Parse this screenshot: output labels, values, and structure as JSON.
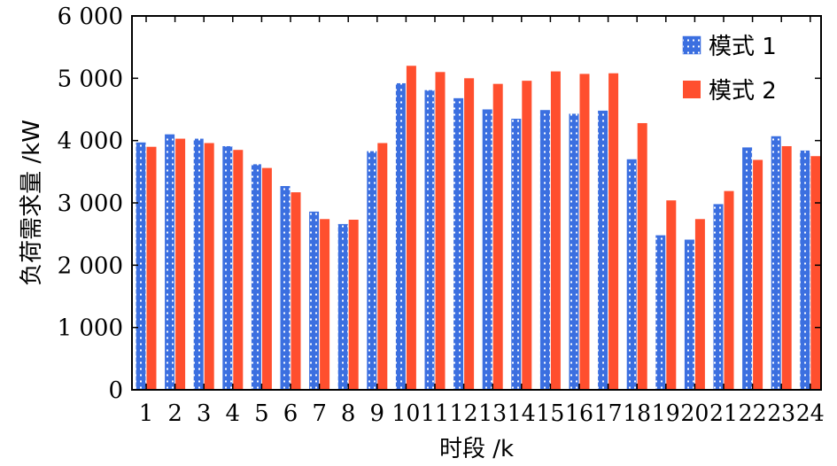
{
  "chart_data": {
    "type": "bar",
    "title": "",
    "xlabel": "时段 /k",
    "ylabel": "负荷需求量 /kW",
    "ylim": [
      0,
      6000
    ],
    "yticks": [
      0,
      1000,
      2000,
      3000,
      4000,
      5000,
      6000
    ],
    "ytick_labels": [
      "0",
      "1 000",
      "2 000",
      "3 000",
      "4 000",
      "5 000",
      "6 000"
    ],
    "categories": [
      "1",
      "2",
      "3",
      "4",
      "5",
      "6",
      "7",
      "8",
      "9",
      "10",
      "11",
      "12",
      "13",
      "14",
      "15",
      "16",
      "17",
      "18",
      "19",
      "20",
      "21",
      "22",
      "23",
      "24"
    ],
    "series": [
      {
        "name": "模式 1",
        "color": "#3b6fe0",
        "pattern": "dotted",
        "values": [
          3970,
          4100,
          4030,
          3910,
          3620,
          3270,
          2860,
          2660,
          3830,
          4920,
          4810,
          4680,
          4500,
          4350,
          4490,
          4430,
          4480,
          3700,
          2480,
          2410,
          2980,
          3890,
          4070,
          3840
        ]
      },
      {
        "name": "模式 2",
        "color": "#ff4f2e",
        "pattern": "solid",
        "values": [
          3900,
          4030,
          3960,
          3850,
          3560,
          3170,
          2740,
          2730,
          3960,
          5200,
          5100,
          5000,
          4910,
          4960,
          5110,
          5070,
          5080,
          4280,
          3040,
          2740,
          3190,
          3690,
          3910,
          3750
        ]
      }
    ],
    "legend_position": "top-right",
    "grid": false
  }
}
